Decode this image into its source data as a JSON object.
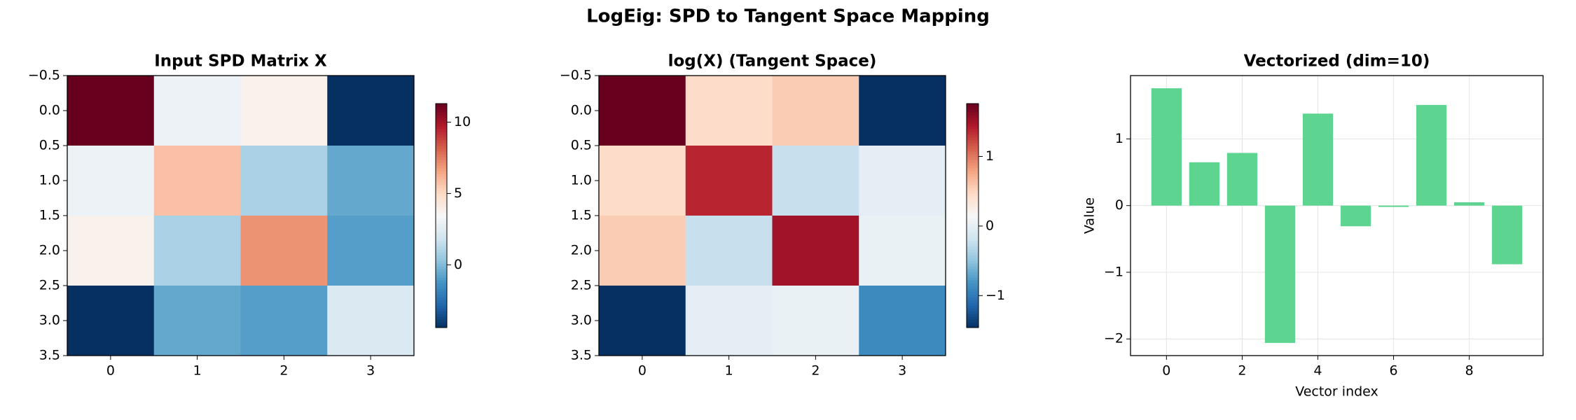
{
  "title": "LogEig: SPD to Tangent Space Mapping",
  "chart_data": [
    {
      "type": "heatmap",
      "title": "Input SPD Matrix X",
      "colormap": "RdBu_r",
      "z": [
        [
          11.3,
          3.0,
          3.8,
          -4.4
        ],
        [
          3.0,
          5.8,
          0.9,
          -0.6
        ],
        [
          3.8,
          0.9,
          7.0,
          -0.9
        ],
        [
          -4.4,
          -0.6,
          -0.9,
          2.3
        ]
      ],
      "zlim": [
        -4.4,
        11.3
      ],
      "colorbar_ticks": [
        0,
        5,
        10
      ],
      "xlim": [
        -0.5,
        3.5
      ],
      "ylim": [
        3.5,
        -0.5
      ],
      "xticks": [
        0,
        1,
        2,
        3
      ],
      "yticks": [
        {
          "value": -0.5,
          "label": "−0.5"
        },
        {
          "value": 0,
          "label": "0.0"
        },
        0.5,
        {
          "value": 1,
          "label": "1.0"
        },
        1.5,
        {
          "value": 2,
          "label": "2.0"
        },
        2.5,
        {
          "value": 3,
          "label": "3.0"
        },
        3.5
      ]
    },
    {
      "type": "heatmap",
      "title": "log(X) (Tangent Space)",
      "colormap": "RdBu_r",
      "z": [
        [
          1.76,
          0.46,
          0.56,
          -1.46
        ],
        [
          0.46,
          1.38,
          -0.22,
          -0.01
        ],
        [
          0.56,
          -0.22,
          1.51,
          0.04
        ],
        [
          -1.46,
          -0.01,
          0.04,
          -0.88
        ]
      ],
      "zlim": [
        -1.46,
        1.76
      ],
      "colorbar_ticks": [
        {
          "value": -1,
          "label": "−1"
        },
        0,
        1
      ],
      "xlim": [
        -0.5,
        3.5
      ],
      "ylim": [
        3.5,
        -0.5
      ],
      "xticks": [
        0,
        1,
        2,
        3
      ],
      "yticks": [
        {
          "value": -0.5,
          "label": "−0.5"
        },
        {
          "value": 0,
          "label": "0.0"
        },
        0.5,
        {
          "value": 1,
          "label": "1.0"
        },
        1.5,
        {
          "value": 2,
          "label": "2.0"
        },
        2.5,
        {
          "value": 3,
          "label": "3.0"
        },
        3.5
      ]
    },
    {
      "type": "bar",
      "title": "Vectorized (dim=10)",
      "color": "#5dd490",
      "x": [
        0,
        1,
        2,
        3,
        4,
        5,
        6,
        7,
        8,
        9
      ],
      "values": [
        1.76,
        0.65,
        0.79,
        -2.06,
        1.38,
        -0.31,
        -0.02,
        1.51,
        0.05,
        -0.88
      ],
      "xlim": [
        -0.95,
        9.95
      ],
      "ylim": [
        -2.25,
        1.95
      ],
      "xticks": [
        0,
        2,
        4,
        6,
        8
      ],
      "yticks": [
        {
          "value": -2,
          "label": "−2"
        },
        {
          "value": -1,
          "label": "−1"
        },
        0,
        1
      ],
      "xlabel": "Vector index",
      "ylabel": "Value",
      "grid": true
    }
  ]
}
